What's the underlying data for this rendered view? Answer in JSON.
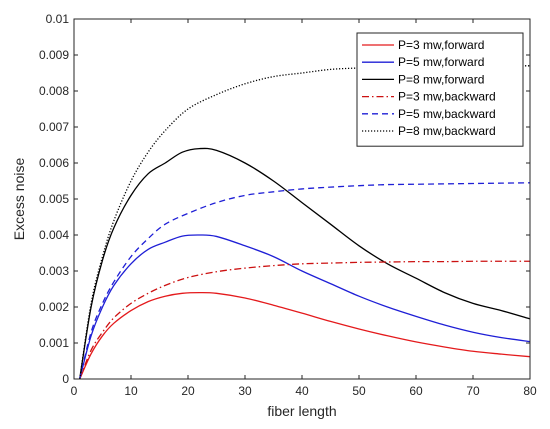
{
  "chart_data": {
    "type": "line",
    "xlabel": "fiber length",
    "ylabel": "Excess noise",
    "xlim": [
      0,
      80
    ],
    "ylim": [
      0,
      0.01
    ],
    "xticks": [
      "0",
      "10",
      "20",
      "30",
      "40",
      "50",
      "60",
      "70",
      "80"
    ],
    "yticks": [
      "0",
      "0.001",
      "0.002",
      "0.003",
      "0.004",
      "0.005",
      "0.006",
      "0.007",
      "0.008",
      "0.009",
      "0.01"
    ],
    "grid": false,
    "legend_position": "top-right",
    "series": [
      {
        "name": "P=3 mw,forward",
        "color": "#e41a1c",
        "dash": "solid",
        "x": [
          1,
          3,
          5,
          7,
          10,
          13,
          16,
          19,
          22,
          25,
          30,
          35,
          40,
          45,
          50,
          55,
          60,
          65,
          70,
          75,
          80
        ],
        "y": [
          0,
          0.0007,
          0.0012,
          0.00155,
          0.0019,
          0.00215,
          0.0023,
          0.00238,
          0.0024,
          0.00238,
          0.00225,
          0.00205,
          0.00183,
          0.0016,
          0.00139,
          0.0012,
          0.00103,
          0.00089,
          0.00077,
          0.00069,
          0.00062
        ]
      },
      {
        "name": "P=5 mw,forward",
        "color": "#1f1fd6",
        "dash": "solid",
        "x": [
          1,
          3,
          5,
          7,
          10,
          13,
          16,
          19,
          22,
          25,
          30,
          35,
          40,
          45,
          50,
          55,
          60,
          65,
          70,
          75,
          80
        ],
        "y": [
          0,
          0.0012,
          0.002,
          0.0026,
          0.0032,
          0.0036,
          0.0038,
          0.00397,
          0.004,
          0.00396,
          0.0037,
          0.0034,
          0.003,
          0.00265,
          0.0023,
          0.002,
          0.00174,
          0.0015,
          0.0013,
          0.00115,
          0.00104
        ]
      },
      {
        "name": "P=8 mw,forward",
        "color": "#000000",
        "dash": "solid",
        "x": [
          1,
          3,
          5,
          7,
          10,
          13,
          16,
          19,
          22,
          25,
          30,
          35,
          40,
          45,
          50,
          55,
          60,
          65,
          70,
          75,
          80
        ],
        "y": [
          0,
          0.002,
          0.0033,
          0.0042,
          0.0051,
          0.0057,
          0.006,
          0.0063,
          0.0064,
          0.00635,
          0.006,
          0.0055,
          0.0049,
          0.0043,
          0.0037,
          0.0032,
          0.0028,
          0.0024,
          0.0021,
          0.0019,
          0.00167
        ]
      },
      {
        "name": "P=3 mw,backward",
        "color": "#cc1111",
        "dash": "dashdot",
        "x": [
          1,
          3,
          5,
          7,
          10,
          13,
          16,
          20,
          25,
          30,
          35,
          40,
          45,
          50,
          55,
          60,
          65,
          70,
          75,
          80
        ],
        "y": [
          0,
          0.0008,
          0.0013,
          0.0017,
          0.0021,
          0.00238,
          0.0026,
          0.00282,
          0.00298,
          0.00308,
          0.00315,
          0.0032,
          0.00322,
          0.00324,
          0.00325,
          0.00326,
          0.00326,
          0.00327,
          0.00327,
          0.00327
        ]
      },
      {
        "name": "P=5 mw,backward",
        "color": "#1f1fd6",
        "dash": "dashed",
        "x": [
          1,
          3,
          5,
          7,
          10,
          13,
          16,
          20,
          25,
          30,
          35,
          40,
          45,
          50,
          55,
          60,
          65,
          70,
          75,
          80
        ],
        "y": [
          0,
          0.0013,
          0.0021,
          0.0027,
          0.0034,
          0.0039,
          0.0043,
          0.0046,
          0.0049,
          0.0051,
          0.0052,
          0.00528,
          0.00533,
          0.00537,
          0.0054,
          0.00541,
          0.00542,
          0.00543,
          0.00544,
          0.00545
        ]
      },
      {
        "name": "P=8 mw,backward",
        "color": "#000000",
        "dash": "dotted",
        "x": [
          1,
          3,
          5,
          7,
          10,
          13,
          16,
          20,
          25,
          30,
          35,
          40,
          45,
          50,
          55,
          60,
          65,
          70,
          75,
          80
        ],
        "y": [
          0,
          0.0021,
          0.0034,
          0.0044,
          0.0055,
          0.0063,
          0.0069,
          0.0075,
          0.0079,
          0.0082,
          0.0084,
          0.0085,
          0.0086,
          0.00864,
          0.00867,
          0.00868,
          0.00869,
          0.0087,
          0.0087,
          0.0087
        ]
      }
    ]
  }
}
